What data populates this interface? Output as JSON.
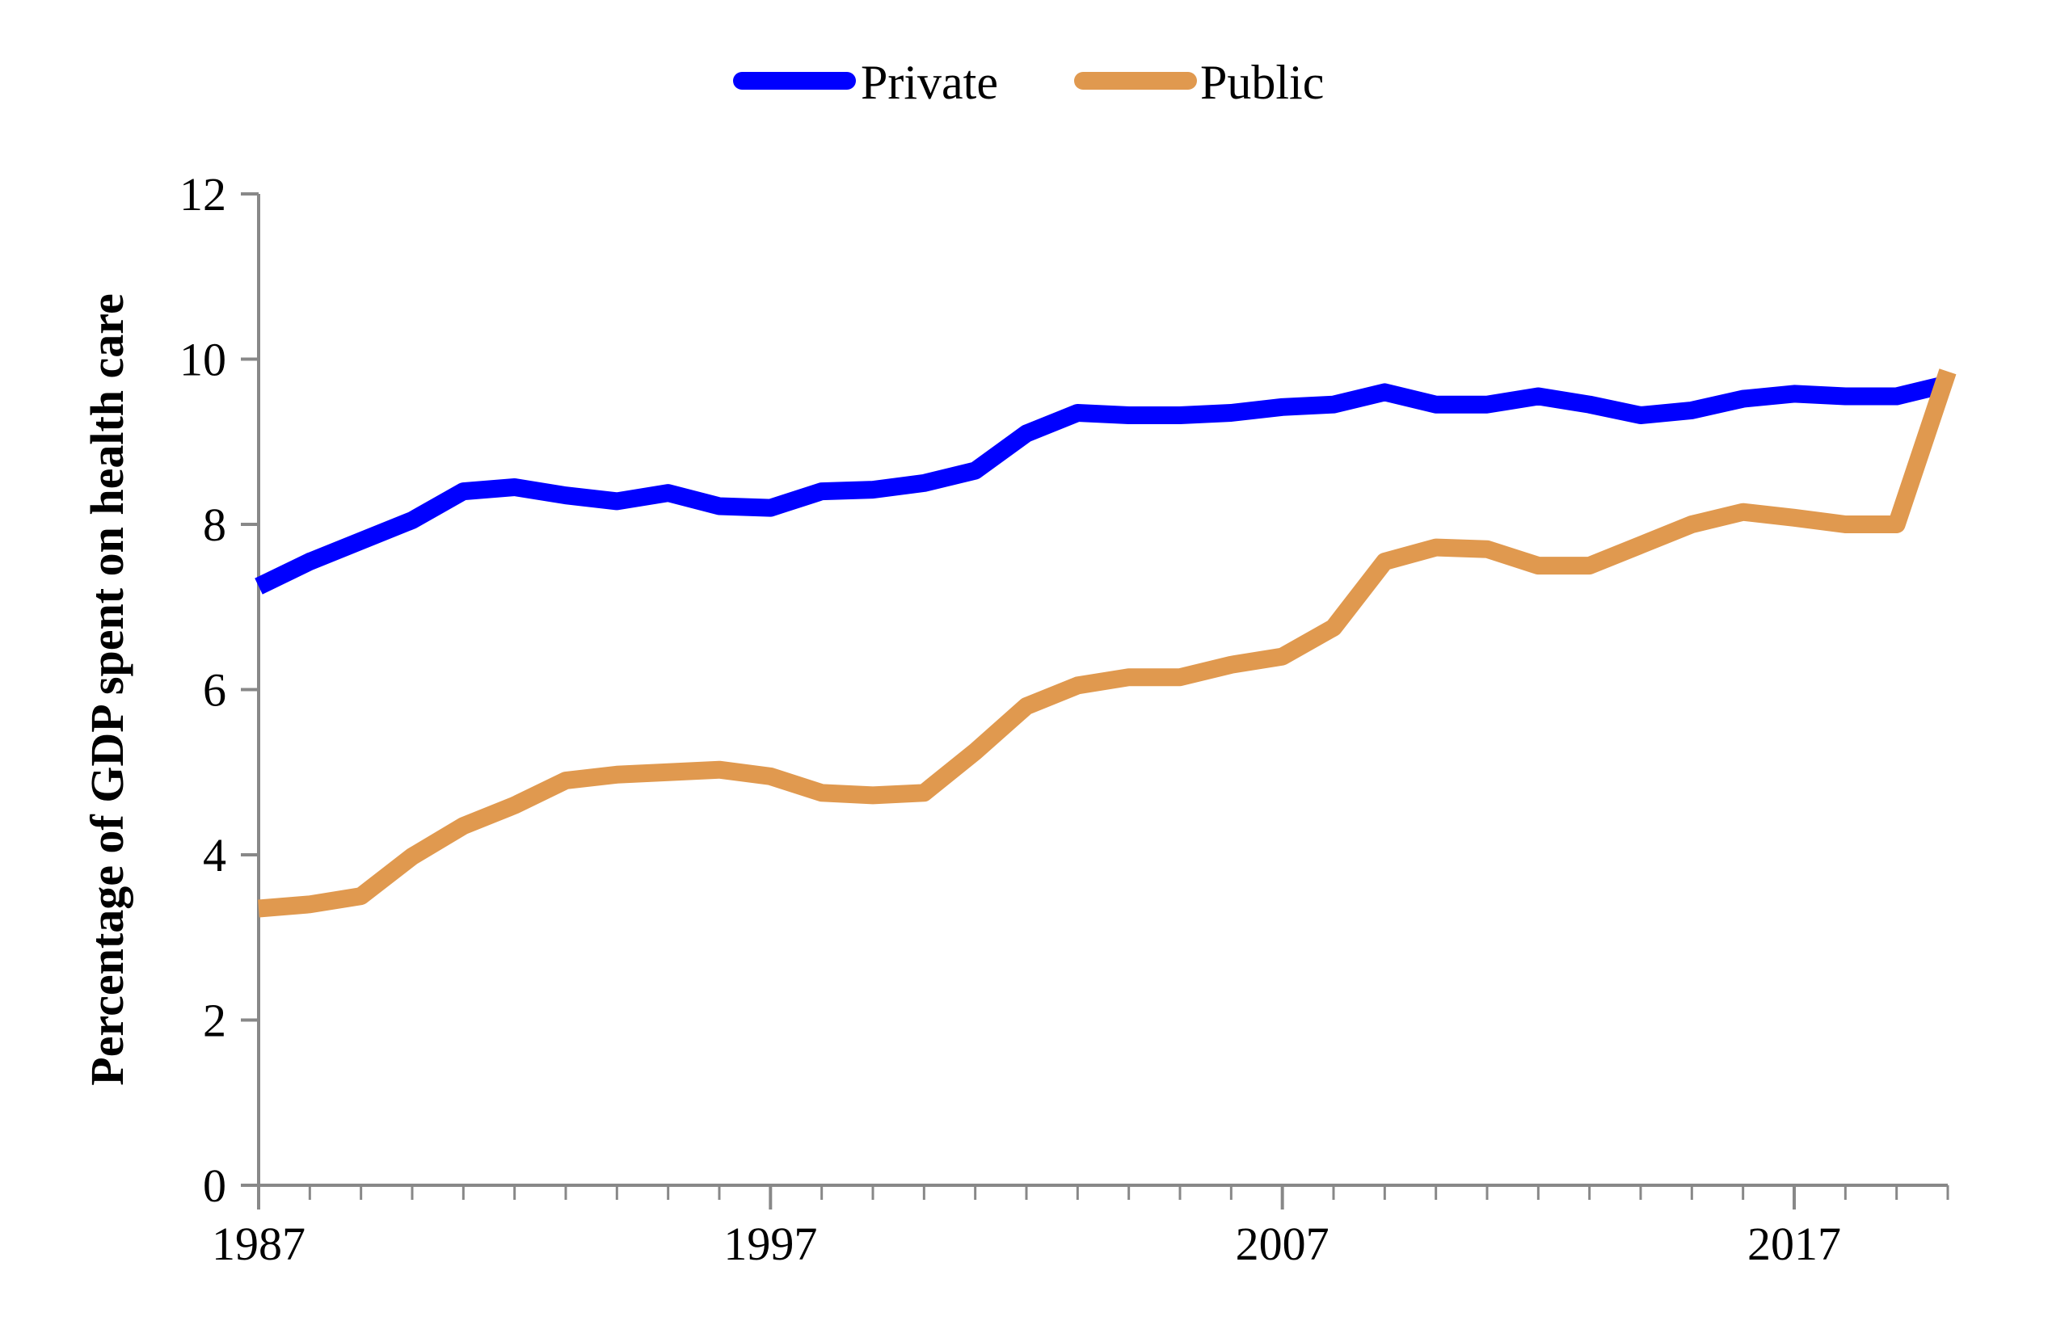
{
  "chart_data": {
    "type": "line",
    "title": "",
    "xlabel": "",
    "ylabel": "Percentage of GDP spent on health care",
    "x": [
      1987,
      1988,
      1989,
      1990,
      1991,
      1992,
      1993,
      1994,
      1995,
      1996,
      1997,
      1998,
      1999,
      2000,
      2001,
      2002,
      2003,
      2004,
      2005,
      2006,
      2007,
      2008,
      2009,
      2010,
      2011,
      2012,
      2013,
      2014,
      2015,
      2016,
      2017,
      2018,
      2019,
      2020
    ],
    "xlim": [
      1987,
      2020
    ],
    "ylim": [
      0,
      12
    ],
    "x_ticks": [
      "1987",
      "1997",
      "2007",
      "2017"
    ],
    "y_ticks": [
      "0",
      "2",
      "4",
      "6",
      "8",
      "10",
      "12"
    ],
    "grid": false,
    "legend_position": "top-center",
    "series": [
      {
        "name": "Private",
        "color": "#0000ff",
        "values": [
          7.25,
          7.55,
          7.8,
          8.05,
          8.4,
          8.45,
          8.35,
          8.28,
          8.38,
          8.22,
          8.2,
          8.4,
          8.42,
          8.5,
          8.65,
          9.1,
          9.35,
          9.32,
          9.32,
          9.35,
          9.42,
          9.45,
          9.6,
          9.45,
          9.45,
          9.55,
          9.45,
          9.32,
          9.38,
          9.52,
          9.58,
          9.55,
          9.55,
          9.7
        ]
      },
      {
        "name": "Public",
        "color": "#e0994f",
        "values": [
          3.35,
          3.4,
          3.5,
          3.98,
          4.35,
          4.6,
          4.9,
          4.97,
          5.0,
          5.03,
          4.95,
          4.75,
          4.72,
          4.75,
          5.25,
          5.8,
          6.05,
          6.15,
          6.15,
          6.3,
          6.4,
          6.75,
          7.55,
          7.72,
          7.7,
          7.5,
          7.5,
          7.75,
          8.0,
          8.15,
          8.08,
          8.0,
          8.0,
          9.85
        ]
      }
    ]
  }
}
